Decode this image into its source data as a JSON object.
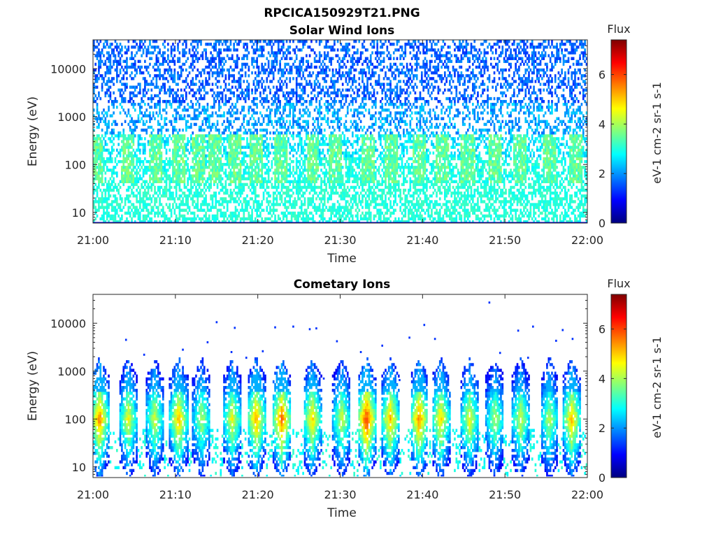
{
  "figure_title": "RPCICA150929T21.PNG",
  "chart_data": [
    {
      "type": "heatmap",
      "title": "Solar Wind Ions",
      "xlabel": "Time",
      "ylabel": "Energy (eV)",
      "x_ticks": [
        "21:00",
        "21:10",
        "21:20",
        "21:30",
        "21:40",
        "21:50",
        "22:00"
      ],
      "xlim_minutes": [
        0,
        60
      ],
      "y_scale": "log",
      "y_ticks": [
        "10",
        "100",
        "1000",
        "10000"
      ],
      "ylim": [
        6,
        40000
      ],
      "colorbar": {
        "label": "Flux",
        "unit": "eV-1 cm-2 sr-1 s-1",
        "range": [
          0,
          7.4
        ],
        "ticks": [
          "0",
          "2",
          "4",
          "6"
        ]
      },
      "colormap": [
        "#00007f",
        "#0000ff",
        "#007fff",
        "#00ffff",
        "#7fff7f",
        "#ffff00",
        "#ff7f00",
        "#ff0000",
        "#7f0000"
      ],
      "burst_minutes": [
        0.5,
        4.2,
        7.6,
        10.3,
        12.8,
        14.8,
        17.2,
        19.9,
        22.8,
        26.7,
        29.4,
        33.4,
        36.2,
        39.6,
        42.4,
        45.5,
        48.7,
        51.8,
        55.4,
        58.6
      ],
      "description_levels": {
        "high_energy_flux": 1.6,
        "mid_energy_flux": 2.6,
        "low_energy_flux": 3.0
      }
    },
    {
      "type": "heatmap",
      "title": "Cometary Ions",
      "xlabel": "Time",
      "ylabel": "Energy (eV)",
      "x_ticks": [
        "21:00",
        "21:10",
        "21:20",
        "21:30",
        "21:40",
        "21:50",
        "22:00"
      ],
      "xlim_minutes": [
        0,
        60
      ],
      "y_scale": "log",
      "y_ticks": [
        "10",
        "100",
        "1000",
        "10000"
      ],
      "ylim": [
        6,
        40000
      ],
      "colorbar": {
        "label": "Flux",
        "unit": "eV-1 cm-2 sr-1 s-1",
        "range": [
          0,
          7.4
        ],
        "ticks": [
          "0",
          "2",
          "4",
          "6"
        ]
      },
      "colormap": [
        "#00007f",
        "#0000ff",
        "#007fff",
        "#00ffff",
        "#7fff7f",
        "#ffff00",
        "#ff7f00",
        "#ff0000",
        "#7f0000"
      ],
      "burst_minutes": [
        0.8,
        4.3,
        7.5,
        10.4,
        13.2,
        16.9,
        19.8,
        22.9,
        26.6,
        30.2,
        33.2,
        36.1,
        39.6,
        42.2,
        45.7,
        48.8,
        51.9,
        55.4,
        58.1
      ],
      "burst_peak_flux": [
        5.6,
        4.6,
        4.4,
        5.2,
        4.2,
        4.6,
        5.4,
        5.8,
        5.0,
        4.4,
        6.2,
        5.2,
        5.6,
        5.0,
        4.6,
        4.2,
        4.4,
        4.2,
        5.2
      ],
      "sparse_points": [
        [
          4.0,
          4500
        ],
        [
          6.2,
          2200
        ],
        [
          8.3,
          700
        ],
        [
          10.9,
          2800
        ],
        [
          13.9,
          4000
        ],
        [
          15.0,
          10500
        ],
        [
          16.8,
          2500
        ],
        [
          17.2,
          8000
        ],
        [
          18.6,
          1900
        ],
        [
          20.6,
          2600
        ],
        [
          22.1,
          8200
        ],
        [
          24.3,
          8500
        ],
        [
          26.3,
          7500
        ],
        [
          27.1,
          7800
        ],
        [
          29.6,
          4200
        ],
        [
          32.5,
          2500
        ],
        [
          35.1,
          3400
        ],
        [
          38.4,
          5000
        ],
        [
          40.2,
          9200
        ],
        [
          41.5,
          4700
        ],
        [
          48.1,
          27000
        ],
        [
          49.4,
          2400
        ],
        [
          51.6,
          7000
        ],
        [
          52.8,
          1900
        ],
        [
          53.4,
          8500
        ],
        [
          56.2,
          4300
        ],
        [
          57.0,
          7200
        ],
        [
          58.2,
          4700
        ],
        [
          28.0,
          700
        ],
        [
          37.2,
          650
        ]
      ]
    }
  ]
}
